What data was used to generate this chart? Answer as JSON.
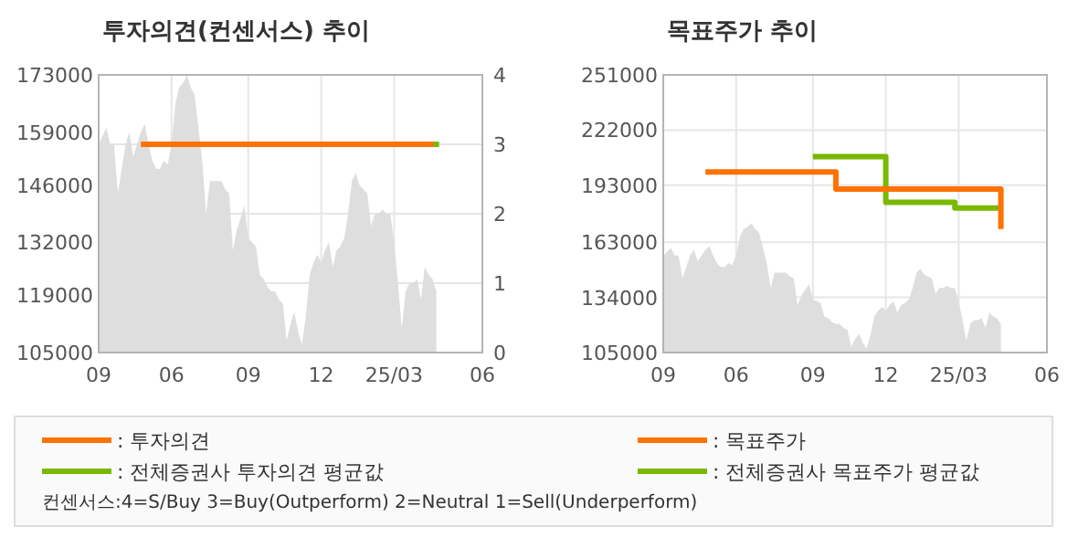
{
  "chart_data": [
    {
      "type": "area",
      "title": "투자의견(컨센서스) 추이",
      "categories": [
        "09",
        null,
        null,
        null,
        null,
        null,
        null,
        null,
        null,
        null,
        null,
        null,
        null,
        null,
        null,
        null,
        null,
        null,
        null,
        "06",
        null,
        null,
        null,
        null,
        null,
        null,
        null,
        null,
        null,
        null,
        null,
        null,
        null,
        null,
        null,
        null,
        null,
        null,
        null,
        "09",
        null,
        null,
        null,
        null,
        null,
        null,
        null,
        null,
        null,
        null,
        null,
        null,
        null,
        null,
        null,
        null,
        null,
        null,
        "12",
        null,
        null,
        null,
        null,
        null,
        null,
        null,
        null,
        null,
        null,
        null,
        null,
        null,
        null,
        null,
        null,
        null,
        null,
        "25/03",
        null,
        null,
        null,
        null,
        null,
        null,
        null,
        null,
        null,
        null,
        null,
        null,
        null,
        null,
        null,
        null,
        null,
        null,
        null,
        null,
        null,
        null,
        "06"
      ],
      "ylim": [
        105000,
        173000
      ],
      "yticks": [
        105000,
        119000,
        132000,
        146000,
        159000,
        173000
      ],
      "y2lim": [
        0,
        4
      ],
      "y2ticks": [
        0,
        1,
        2,
        3,
        4
      ],
      "grid": true,
      "legend": "bottom",
      "annotations": [
        "컨센서스:4=S/Buy    3=Buy(Outperform)  2=Neutral   1=Sell(Underperform)"
      ],
      "series": [
        {
          "type": "area",
          "color": "#dedede",
          "values": [
            156000,
            158000,
            160000,
            156000,
            156000,
            144000,
            150000,
            156000,
            159000,
            153000,
            156000,
            159000,
            161000,
            156000,
            152000,
            150000,
            150000,
            152000,
            151000,
            156000,
            166000,
            170000,
            171000,
            173000,
            170000,
            168000,
            160000,
            152000,
            139000,
            147000,
            147000,
            147000,
            147000,
            145000,
            144000,
            130000,
            135000,
            138000,
            141000,
            133000,
            132000,
            131000,
            124000,
            123000,
            121000,
            120000,
            120000,
            118000,
            117000,
            108000,
            112000,
            115000,
            110000,
            107000,
            114000,
            124000,
            127000,
            129000,
            127000,
            130000,
            132000,
            126000,
            130000,
            131000,
            133000,
            139000,
            147000,
            149000,
            146000,
            145000,
            144000,
            136000,
            139000,
            139000,
            140000,
            139000,
            139000,
            132000,
            122000,
            111000,
            120000,
            122000,
            122000,
            123000,
            118000,
            126000,
            124000,
            123000,
            120000,
            null,
            null,
            null,
            null,
            null,
            null,
            null,
            null,
            null,
            null,
            null,
            null
          ]
        },
        {
          "type": "line",
          "name": ": 투자의견",
          "color": "#ff7200",
          "axis": "y2",
          "values": [
            null,
            null,
            null,
            null,
            null,
            null,
            null,
            null,
            null,
            null,
            null,
            3,
            3,
            3,
            3,
            3,
            3,
            3,
            3,
            3,
            3,
            3,
            3,
            3,
            3,
            3,
            3,
            3,
            3,
            3,
            3,
            3,
            3,
            3,
            3,
            3,
            3,
            3,
            3,
            3,
            3,
            3,
            3,
            3,
            3,
            3,
            3,
            3,
            3,
            3,
            3,
            3,
            3,
            3,
            3,
            3,
            3,
            3,
            3,
            3,
            3,
            3,
            3,
            3,
            3,
            3,
            3,
            3,
            3,
            3,
            3,
            3,
            3,
            3,
            3,
            3,
            3,
            3,
            3,
            3,
            3,
            3,
            3,
            3,
            3,
            3,
            3,
            3,
            3,
            null,
            null,
            null,
            null,
            null,
            null,
            null,
            null,
            null,
            null,
            null,
            null
          ]
        },
        {
          "type": "line",
          "name": ": 전체증권사 투자의견 평균값",
          "color": "#7ab800",
          "axis": "y2",
          "marker": "square",
          "values": [
            null,
            null,
            null,
            null,
            null,
            null,
            null,
            null,
            null,
            null,
            null,
            null,
            null,
            null,
            null,
            null,
            null,
            null,
            null,
            null,
            null,
            null,
            null,
            null,
            null,
            null,
            null,
            null,
            null,
            null,
            null,
            null,
            null,
            null,
            null,
            null,
            null,
            null,
            null,
            null,
            null,
            null,
            null,
            null,
            null,
            null,
            null,
            null,
            null,
            null,
            null,
            null,
            null,
            null,
            null,
            null,
            null,
            null,
            null,
            null,
            null,
            null,
            null,
            null,
            null,
            null,
            null,
            null,
            null,
            null,
            null,
            null,
            null,
            null,
            null,
            null,
            null,
            null,
            null,
            null,
            null,
            null,
            null,
            null,
            null,
            null,
            null,
            null,
            3,
            null,
            null,
            null,
            null,
            null,
            null,
            null,
            null,
            null,
            null,
            null,
            null
          ]
        }
      ]
    },
    {
      "type": "area",
      "title": "목표주가 추이",
      "categories": [
        "09",
        null,
        null,
        null,
        null,
        null,
        null,
        null,
        null,
        null,
        null,
        null,
        null,
        null,
        null,
        null,
        null,
        null,
        null,
        "06",
        null,
        null,
        null,
        null,
        null,
        null,
        null,
        null,
        null,
        null,
        null,
        null,
        null,
        null,
        null,
        null,
        null,
        null,
        null,
        "09",
        null,
        null,
        null,
        null,
        null,
        null,
        null,
        null,
        null,
        null,
        null,
        null,
        null,
        null,
        null,
        null,
        null,
        null,
        "12",
        null,
        null,
        null,
        null,
        null,
        null,
        null,
        null,
        null,
        null,
        null,
        null,
        null,
        null,
        null,
        null,
        null,
        null,
        "25/03",
        null,
        null,
        null,
        null,
        null,
        null,
        null,
        null,
        null,
        null,
        null,
        null,
        null,
        null,
        null,
        null,
        null,
        null,
        null,
        null,
        null,
        null,
        "06"
      ],
      "ylim": [
        105000,
        251000
      ],
      "yticks": [
        105000,
        134000,
        163000,
        193000,
        222000,
        251000
      ],
      "grid": true,
      "legend": "bottom",
      "series": [
        {
          "type": "area",
          "color": "#dedede",
          "values": [
            156000,
            158000,
            160000,
            156000,
            156000,
            144000,
            150000,
            156000,
            159000,
            153000,
            156000,
            159000,
            161000,
            156000,
            152000,
            150000,
            150000,
            152000,
            151000,
            156000,
            166000,
            170000,
            171000,
            173000,
            170000,
            168000,
            160000,
            152000,
            139000,
            147000,
            147000,
            147000,
            147000,
            145000,
            144000,
            130000,
            135000,
            138000,
            141000,
            133000,
            132000,
            131000,
            124000,
            123000,
            121000,
            120000,
            120000,
            118000,
            117000,
            108000,
            112000,
            115000,
            110000,
            107000,
            114000,
            124000,
            127000,
            129000,
            127000,
            130000,
            132000,
            126000,
            130000,
            131000,
            133000,
            139000,
            147000,
            149000,
            146000,
            145000,
            144000,
            136000,
            139000,
            139000,
            140000,
            139000,
            139000,
            132000,
            122000,
            111000,
            120000,
            122000,
            122000,
            123000,
            118000,
            126000,
            124000,
            123000,
            120000,
            null,
            null,
            null,
            null,
            null,
            null,
            null,
            null,
            null,
            null,
            null,
            null
          ]
        },
        {
          "type": "step",
          "name": ": 전체증권사 목표주가 평균값",
          "color": "#7ab800",
          "values": [
            null,
            null,
            null,
            null,
            null,
            null,
            null,
            null,
            null,
            null,
            null,
            null,
            null,
            null,
            null,
            null,
            null,
            null,
            null,
            null,
            null,
            null,
            null,
            null,
            null,
            null,
            null,
            null,
            null,
            null,
            null,
            null,
            null,
            null,
            null,
            null,
            null,
            null,
            null,
            208000,
            208000,
            208000,
            208000,
            208000,
            208000,
            208000,
            208000,
            208000,
            208000,
            208000,
            208000,
            208000,
            208000,
            208000,
            208000,
            208000,
            208000,
            208000,
            184000,
            184000,
            184000,
            184000,
            184000,
            184000,
            184000,
            184000,
            184000,
            184000,
            184000,
            184000,
            184000,
            184000,
            184000,
            184000,
            184000,
            184000,
            181000,
            181000,
            181000,
            181000,
            181000,
            181000,
            181000,
            181000,
            181000,
            181000,
            181000,
            181000,
            181000,
            null,
            null,
            null,
            null,
            null,
            null,
            null,
            null,
            null,
            null,
            null,
            null
          ]
        },
        {
          "type": "step",
          "name": ": 목표주가",
          "color": "#ff7200",
          "values": [
            null,
            null,
            null,
            null,
            null,
            null,
            null,
            null,
            null,
            null,
            null,
            200000,
            200000,
            200000,
            200000,
            200000,
            200000,
            200000,
            200000,
            200000,
            200000,
            200000,
            200000,
            200000,
            200000,
            200000,
            200000,
            200000,
            200000,
            200000,
            200000,
            200000,
            200000,
            200000,
            200000,
            200000,
            200000,
            200000,
            200000,
            200000,
            200000,
            200000,
            200000,
            200000,
            200000,
            191000,
            191000,
            191000,
            191000,
            191000,
            191000,
            191000,
            191000,
            191000,
            191000,
            191000,
            191000,
            191000,
            191000,
            191000,
            191000,
            191000,
            191000,
            191000,
            191000,
            191000,
            191000,
            191000,
            191000,
            191000,
            191000,
            191000,
            191000,
            191000,
            191000,
            191000,
            191000,
            191000,
            191000,
            191000,
            191000,
            191000,
            191000,
            191000,
            191000,
            191000,
            191000,
            191000,
            170000,
            null,
            null,
            null,
            null,
            null,
            null,
            null,
            null,
            null,
            null,
            null,
            null
          ]
        }
      ]
    }
  ]
}
